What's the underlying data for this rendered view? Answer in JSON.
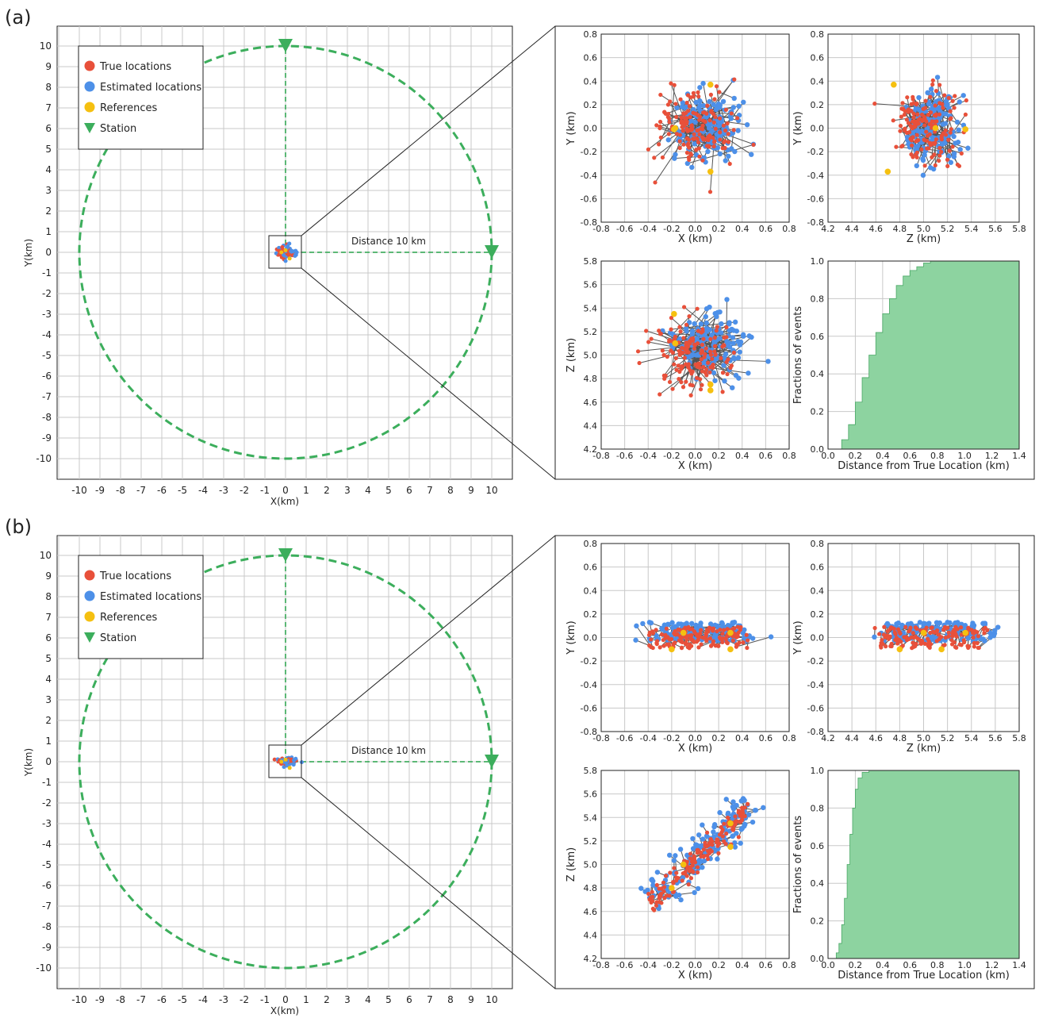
{
  "figure": {
    "panels": [
      {
        "label": "(a)",
        "distance_label": "Distance 10 km"
      },
      {
        "label": "(b)",
        "distance_label": "Distance 10 km"
      }
    ],
    "legend": [
      "True locations",
      "Estimated locations",
      "References",
      "Station"
    ],
    "big_map": {
      "xlabel": "X(km)",
      "ylabel": "Y(km)",
      "xticks": [
        "-10",
        "-9",
        "-8",
        "-7",
        "-6",
        "-5",
        "-4",
        "-3",
        "-2",
        "-1",
        "0",
        "1",
        "2",
        "3",
        "4",
        "5",
        "6",
        "7",
        "8",
        "9",
        "10"
      ],
      "yticks": [
        "10",
        "9",
        "8",
        "7",
        "6",
        "5",
        "4",
        "3",
        "2",
        "1",
        "0",
        "-1",
        "-2",
        "-3",
        "-4",
        "-5",
        "-6",
        "-7",
        "-8",
        "-9",
        "-10"
      ]
    },
    "colors": {
      "true": "#e8503a",
      "estimated": "#4d90e8",
      "reference": "#f5c010",
      "station": "#3cae5c",
      "cdf_fill": "#8dd3a0",
      "grid": "#c8c8c8"
    }
  },
  "chart_data": [
    {
      "panel": "(a)",
      "type": "scatter",
      "title": "",
      "plots": [
        {
          "name": "XY",
          "xlabel": "X (km)",
          "ylabel": "Y (km)",
          "xlim": [
            -0.8,
            0.8
          ],
          "ylim": [
            -0.8,
            0.8
          ],
          "xticks": [
            "-0.8",
            "-0.6",
            "-0.4",
            "-0.2",
            "0.0",
            "0.2",
            "0.4",
            "0.6",
            "0.8"
          ],
          "yticks": [
            "0.8",
            "0.6",
            "0.4",
            "0.2",
            "0.0",
            "-0.2",
            "-0.4",
            "-0.6",
            "-0.8"
          ]
        },
        {
          "name": "ZY",
          "xlabel": "Z (km)",
          "ylabel": "Y (km)",
          "xlim": [
            4.2,
            5.8
          ],
          "ylim": [
            -0.8,
            0.8
          ],
          "xticks": [
            "4.2",
            "4.4",
            "4.6",
            "4.8",
            "5.0",
            "5.2",
            "5.4",
            "5.6",
            "5.8"
          ],
          "yticks": [
            "0.8",
            "0.6",
            "0.4",
            "0.2",
            "0.0",
            "-0.2",
            "-0.4",
            "-0.6",
            "-0.8"
          ]
        },
        {
          "name": "XZ",
          "xlabel": "X (km)",
          "ylabel": "Z (km)",
          "xlim": [
            -0.8,
            0.8
          ],
          "ylim": [
            4.2,
            5.8
          ],
          "xticks": [
            "-0.8",
            "-0.6",
            "-0.4",
            "-0.2",
            "0.0",
            "0.2",
            "0.4",
            "0.6",
            "0.8"
          ],
          "yticks": [
            "5.8",
            "5.6",
            "5.4",
            "5.2",
            "5.0",
            "4.8",
            "4.6",
            "4.4",
            "4.2"
          ]
        },
        {
          "name": "CDF",
          "type": "area",
          "xlabel": "Distance from True Location (km)",
          "ylabel": "Fractions of events",
          "xlim": [
            0,
            1.4
          ],
          "ylim": [
            0,
            1.0
          ],
          "xticks": [
            "0.0",
            "0.2",
            "0.4",
            "0.6",
            "0.8",
            "1.0",
            "1.2",
            "1.4"
          ],
          "yticks": [
            "1.0",
            "0.8",
            "0.6",
            "0.4",
            "0.2",
            "0.0"
          ],
          "x": [
            0.0,
            0.05,
            0.1,
            0.15,
            0.2,
            0.25,
            0.3,
            0.35,
            0.4,
            0.45,
            0.5,
            0.55,
            0.6,
            0.65,
            0.7,
            0.75,
            0.8,
            1.4
          ],
          "y": [
            0.0,
            0.0,
            0.05,
            0.13,
            0.25,
            0.38,
            0.5,
            0.62,
            0.72,
            0.8,
            0.87,
            0.92,
            0.95,
            0.97,
            0.99,
            1.0,
            1.0,
            1.0
          ]
        }
      ],
      "cluster": {
        "true": {
          "x": [
            0,
            0.18
          ],
          "y": [
            0,
            0.18
          ],
          "z": [
            5.0,
            0.18
          ]
        },
        "estimated": {
          "x": [
            0.12,
            0.15
          ],
          "y": [
            0,
            0.15
          ],
          "z": [
            5.1,
            0.13
          ]
        },
        "references": {
          "x": [
            -0.17,
            0.13,
            0.13,
            -0.18
          ],
          "y": [
            0.0,
            0.37,
            -0.37,
            -0.01
          ],
          "z": [
            5.1,
            4.75,
            4.7,
            5.35
          ]
        },
        "count": 150
      },
      "station": {
        "x": [
          0,
          10
        ],
        "y": [
          10,
          0
        ]
      }
    },
    {
      "panel": "(b)",
      "type": "scatter",
      "title": "",
      "plots": [
        {
          "name": "XY",
          "xlabel": "X (km)",
          "ylabel": "Y (km)",
          "xlim": [
            -0.8,
            0.8
          ],
          "ylim": [
            -0.8,
            0.8
          ],
          "xticks": [
            "-0.8",
            "-0.6",
            "-0.4",
            "-0.2",
            "0.0",
            "0.2",
            "0.4",
            "0.6",
            "0.8"
          ],
          "yticks": [
            "0.8",
            "0.6",
            "0.4",
            "0.2",
            "0.0",
            "-0.2",
            "-0.4",
            "-0.6",
            "-0.8"
          ]
        },
        {
          "name": "ZY",
          "xlabel": "Z (km)",
          "ylabel": "Y (km)",
          "xlim": [
            4.2,
            5.8
          ],
          "ylim": [
            -0.8,
            0.8
          ],
          "xticks": [
            "4.2",
            "4.4",
            "4.6",
            "4.8",
            "5.0",
            "5.2",
            "5.4",
            "5.6",
            "5.8"
          ],
          "yticks": [
            "0.8",
            "0.6",
            "0.4",
            "0.2",
            "0.0",
            "-0.2",
            "-0.4",
            "-0.6",
            "-0.8"
          ]
        },
        {
          "name": "XZ",
          "xlabel": "X (km)",
          "ylabel": "Z (km)",
          "xlim": [
            -0.8,
            0.8
          ],
          "ylim": [
            4.2,
            5.8
          ],
          "xticks": [
            "-0.8",
            "-0.6",
            "-0.4",
            "-0.2",
            "0.0",
            "0.2",
            "0.4",
            "0.6",
            "0.8"
          ],
          "yticks": [
            "5.8",
            "5.6",
            "5.4",
            "5.2",
            "5.0",
            "4.8",
            "4.6",
            "4.4",
            "4.2"
          ]
        },
        {
          "name": "CDF",
          "type": "area",
          "xlabel": "Distance from True Location (km)",
          "ylabel": "Fractions of events",
          "xlim": [
            0,
            1.4
          ],
          "ylim": [
            0,
            1.0
          ],
          "xticks": [
            "0.0",
            "0.2",
            "0.4",
            "0.6",
            "0.8",
            "1.0",
            "1.2",
            "1.4"
          ],
          "yticks": [
            "1.0",
            "0.8",
            "0.6",
            "0.4",
            "0.2",
            "0.0"
          ],
          "x": [
            0.0,
            0.04,
            0.06,
            0.08,
            0.1,
            0.12,
            0.14,
            0.16,
            0.18,
            0.2,
            0.22,
            0.25,
            0.3,
            1.4
          ],
          "y": [
            0.0,
            0.0,
            0.03,
            0.08,
            0.18,
            0.32,
            0.5,
            0.66,
            0.8,
            0.9,
            0.96,
            0.99,
            1.0,
            1.0
          ]
        }
      ],
      "cluster": {
        "true": {
          "x_range": [
            -0.4,
            0.45
          ],
          "y": [
            0.0,
            0.05
          ],
          "z_base": 4.65,
          "z_slope": 0.95
        },
        "estimated": {
          "x_range": [
            -0.5,
            0.6
          ],
          "y": [
            0.05,
            0.06
          ],
          "z_base": 4.7,
          "z_slope": 0.9
        },
        "references": {
          "x": [
            -0.2,
            -0.1,
            0.3,
            0.3
          ],
          "y": [
            -0.1,
            0.04,
            -0.1,
            0.04
          ],
          "z": [
            4.8,
            5.0,
            5.15,
            5.35
          ]
        },
        "count": 150
      },
      "station": {
        "x": [
          0,
          10
        ],
        "y": [
          10,
          0
        ]
      }
    }
  ]
}
